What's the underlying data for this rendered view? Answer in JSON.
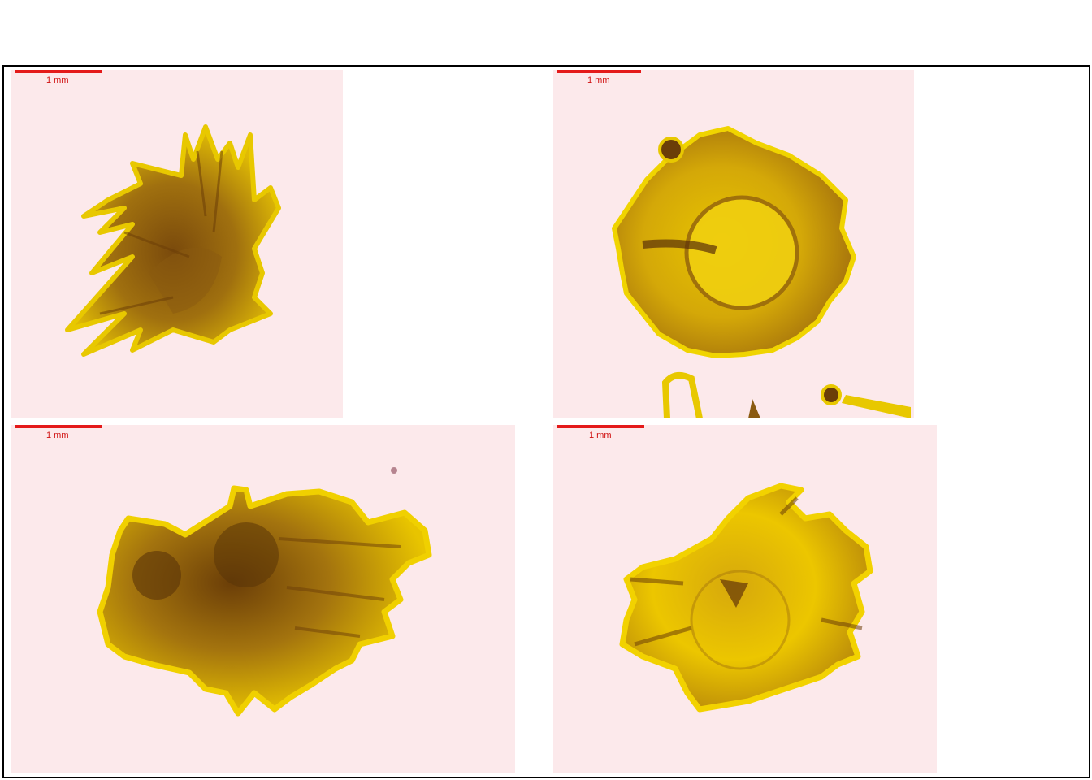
{
  "figure": {
    "panels": [
      {
        "id": "top-left",
        "scale_label": "1 mm"
      },
      {
        "id": "top-right",
        "scale_label": "1 mm"
      },
      {
        "id": "bottom-left",
        "scale_label": "1 mm"
      },
      {
        "id": "bottom-right",
        "scale_label": "1 mm"
      }
    ],
    "colors": {
      "background": "#fce9eb",
      "specimen_light": "#f2d200",
      "specimen_dark": "#6b3e08",
      "scale_bar": "#e41a1a",
      "frame": "#000000"
    }
  }
}
